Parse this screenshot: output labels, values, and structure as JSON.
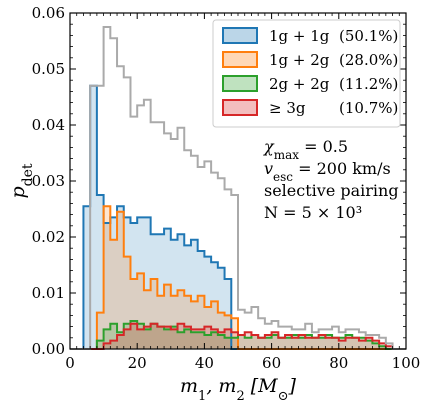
{
  "chart_data": {
    "type": "step",
    "xlabel": "m_1, m_2 [M_⊙]",
    "ylabel": "p_det",
    "xlim": [
      0,
      100
    ],
    "ylim": [
      0,
      0.06
    ],
    "xticks": [
      0,
      20,
      40,
      60,
      80,
      100
    ],
    "yticks": [
      0.0,
      0.01,
      0.02,
      0.03,
      0.04,
      0.05,
      0.06
    ],
    "xtick_labels": [
      "0",
      "20",
      "40",
      "60",
      "80",
      "100"
    ],
    "ytick_labels": [
      "0.00",
      "0.01",
      "0.02",
      "0.03",
      "0.04",
      "0.05",
      "0.06"
    ],
    "bin_edges": [
      0,
      2,
      4,
      6,
      8,
      10,
      12,
      14,
      16,
      18,
      20,
      22,
      24,
      26,
      28,
      30,
      32,
      34,
      36,
      38,
      40,
      42,
      44,
      46,
      48,
      50,
      52,
      54,
      56,
      58,
      60,
      62,
      64,
      66,
      68,
      70,
      72,
      74,
      76,
      78,
      80,
      82,
      84,
      86,
      88,
      90,
      92,
      94,
      96,
      98,
      100
    ],
    "series": [
      {
        "key": "total",
        "color": "#aaaaaa",
        "fill": false,
        "values": [
          0,
          0,
          0,
          0.047,
          0.047,
          0.0575,
          0.0555,
          0.0505,
          0.0485,
          0.0415,
          0.0435,
          0.0445,
          0.0405,
          0.0405,
          0.0385,
          0.0375,
          0.0395,
          0.0355,
          0.0345,
          0.0325,
          0.0335,
          0.0315,
          0.0305,
          0.0285,
          0.0275,
          0.007,
          0.0065,
          0.0075,
          0.0055,
          0.0045,
          0.005,
          0.004,
          0.004,
          0.0035,
          0.0035,
          0.0045,
          0.003,
          0.0035,
          0.0035,
          0.004,
          0.003,
          0.0035,
          0.0035,
          0.003,
          0.0025,
          0.0025,
          0.002,
          0.001,
          0,
          0
        ]
      },
      {
        "key": "1g1g",
        "name_text": "1g + 1g",
        "percent": "(50.1%)",
        "color": "#1f77b4",
        "fill_color": "#1f77b4",
        "values": [
          0,
          0,
          0.0255,
          0.047,
          0.0275,
          0.0225,
          0.0235,
          0.0255,
          0.0235,
          0.0225,
          0.0235,
          0.0235,
          0.0205,
          0.0205,
          0.0215,
          0.0195,
          0.0205,
          0.0185,
          0.0195,
          0.0175,
          0.0165,
          0.0155,
          0.0145,
          0.0125,
          0,
          0,
          0,
          0,
          0,
          0,
          0,
          0,
          0,
          0,
          0,
          0,
          0,
          0,
          0,
          0,
          0,
          0,
          0,
          0,
          0,
          0,
          0,
          0,
          0,
          0
        ]
      },
      {
        "key": "1g2g",
        "name_text": "1g + 2g",
        "percent": "(28.0%)",
        "color": "#ff7f0e",
        "fill_color": "#ff7f0e",
        "values": [
          0,
          0,
          0,
          0,
          0.0065,
          0.0255,
          0.0195,
          0.0245,
          0.0165,
          0.0125,
          0.0135,
          0.0105,
          0.0125,
          0.0095,
          0.0115,
          0.0095,
          0.0105,
          0.0095,
          0.0085,
          0.0095,
          0.0075,
          0.0085,
          0.0065,
          0.006,
          0.0055,
          0,
          0,
          0,
          0,
          0,
          0,
          0,
          0,
          0,
          0,
          0,
          0,
          0,
          0,
          0,
          0,
          0,
          0,
          0,
          0,
          0,
          0,
          0,
          0,
          0
        ]
      },
      {
        "key": "2g2g",
        "name_text": "2g + 2g",
        "percent": "(11.2%)",
        "color": "#2ca02c",
        "fill_color": "#2ca02c",
        "values": [
          0,
          0,
          0,
          0,
          0.0015,
          0.0035,
          0.0045,
          0.003,
          0.0045,
          0.005,
          0.0045,
          0.0035,
          0.0045,
          0.004,
          0.0035,
          0.004,
          0.003,
          0.0035,
          0.003,
          0.003,
          0.0025,
          0.003,
          0.0025,
          0.002,
          0.002,
          0.0025,
          0.002,
          0.0025,
          0.002,
          0.002,
          0.0025,
          0.002,
          0.002,
          0.0025,
          0.002,
          0.0025,
          0.002,
          0.002,
          0.0025,
          0.002,
          0.002,
          0.0025,
          0.002,
          0.002,
          0.0015,
          0.001,
          0.0005,
          0,
          0,
          0
        ]
      },
      {
        "key": "3g",
        "name_text": "≥ 3g",
        "percent": "(10.7%)",
        "color": "#d62728",
        "fill_color": "#d62728",
        "values": [
          0,
          0,
          0,
          0,
          0,
          0.001,
          0.0015,
          0.0025,
          0.0035,
          0.0045,
          0.0035,
          0.004,
          0.0045,
          0.004,
          0.004,
          0.0035,
          0.0045,
          0.004,
          0.0035,
          0.0035,
          0.004,
          0.0035,
          0.003,
          0.0035,
          0.003,
          0.0025,
          0.003,
          0.0025,
          0.002,
          0.0025,
          0.003,
          0.002,
          0.0025,
          0.002,
          0.0025,
          0.002,
          0.002,
          0.0025,
          0.002,
          0.002,
          0.0015,
          0.002,
          0.002,
          0.0015,
          0.002,
          0.0015,
          0.001,
          0.0005,
          0,
          0
        ]
      }
    ],
    "annotations": [
      "χ_max = 0.5",
      "v_esc = 200 km/s",
      "selective pairing",
      "N = 5 × 10³"
    ],
    "legend_position": "top-right",
    "grid": false
  }
}
